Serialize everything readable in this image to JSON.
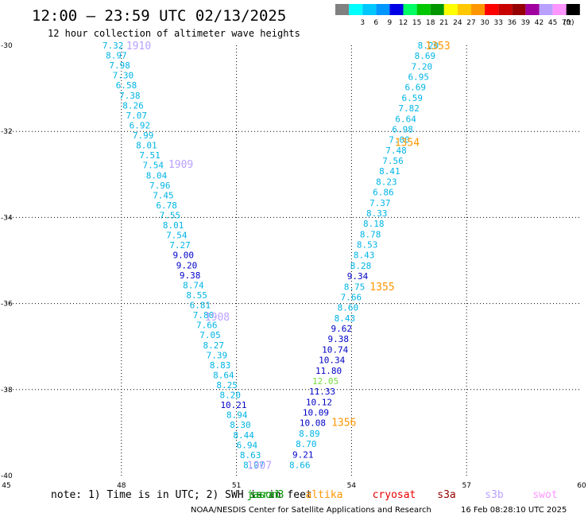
{
  "header": {
    "title": "12:00 — 23:59 UTC 02/13/2025",
    "subtitle": "12 hour collection of altimeter wave heights"
  },
  "legend": {
    "unit": "(ft)",
    "swatches": [
      {
        "color": "#808080",
        "label": ""
      },
      {
        "color": "#00ffff",
        "label": "3"
      },
      {
        "color": "#00c8ff",
        "label": "6"
      },
      {
        "color": "#0096ff",
        "label": "9"
      },
      {
        "color": "#0000e6",
        "label": "12"
      },
      {
        "color": "#00ff64",
        "label": "15"
      },
      {
        "color": "#00c800",
        "label": "18"
      },
      {
        "color": "#009600",
        "label": "21"
      },
      {
        "color": "#ffff00",
        "label": "24"
      },
      {
        "color": "#ffc800",
        "label": "27"
      },
      {
        "color": "#ff9600",
        "label": "30"
      },
      {
        "color": "#ff0000",
        "label": "33"
      },
      {
        "color": "#c80000",
        "label": "36"
      },
      {
        "color": "#960000",
        "label": "39"
      },
      {
        "color": "#a000a0",
        "label": "42"
      },
      {
        "color": "#b9a0ff",
        "label": "45"
      },
      {
        "color": "#ff96ff",
        "label": "70"
      },
      {
        "color": "#000000",
        "label": ""
      }
    ]
  },
  "footer": {
    "note": "note: 1) Time is in UTC; 2) SWH is in feet",
    "credit": "NOAA/NESDIS Center for Satellite Applications and Research",
    "timestamp": "16 Feb 08:28:10 UTC 2025",
    "satellites": [
      {
        "name": "jason3",
        "color": "#009600"
      },
      {
        "name": "saral",
        "color": "#009600"
      },
      {
        "name": "altika",
        "color": "#ff9600"
      },
      {
        "name": "cryosat",
        "color": "#e60000"
      },
      {
        "name": "s3a",
        "color": "#960000"
      },
      {
        "name": "s3b",
        "color": "#b9a0ff"
      },
      {
        "name": "swot",
        "color": "#ff96ff"
      }
    ]
  },
  "chart_data": {
    "type": "scatter",
    "title": "12:00 — 23:59 UTC 02/13/2025",
    "subtitle": "12 hour collection of altimeter wave heights",
    "xlim": [
      45,
      60
    ],
    "ylim": [
      -40,
      -30
    ],
    "x_ticks": [
      "45",
      "48",
      "51",
      "54",
      "57",
      "60"
    ],
    "y_ticks": [
      "-30",
      "-32",
      "-34",
      "-36",
      "-38",
      "-40"
    ],
    "grid": true,
    "colors": {
      "low": "#00b4e6",
      "mid": "#0000c8",
      "high": "#78dc3c"
    },
    "tracks": [
      {
        "pass_label": "1910",
        "pass_color": "#b9a0ff",
        "label_at": [
          48.45,
          -30.0
        ],
        "start": [
          47.78,
          -30.0
        ],
        "end": [
          51.45,
          -39.75
        ],
        "values": [
          7.32,
          8.97,
          7.98,
          7.3,
          6.58,
          7.38,
          8.26,
          7.07,
          6.92,
          7.99,
          8.01,
          7.51,
          7.54,
          8.04,
          7.96,
          7.45,
          6.78,
          7.55,
          8.01,
          7.54,
          7.27,
          9.0,
          9.2,
          9.38,
          8.74,
          8.55,
          6.81,
          7.8,
          7.66,
          7.05,
          8.27,
          7.39,
          8.83,
          8.64,
          8.25,
          8.2,
          10.21,
          8.94,
          8.3,
          8.44,
          6.94,
          8.63,
          8.07
        ]
      },
      {
        "pass_label": "1909",
        "pass_color": "#b9a0ff",
        "label_at": [
          49.55,
          -32.75
        ]
      },
      {
        "pass_label": "1908",
        "pass_color": "#b9a0ff",
        "label_at": [
          50.5,
          -36.3
        ]
      },
      {
        "pass_label": "1907",
        "pass_color": "#b9a0ff",
        "label_at": [
          51.6,
          -39.75
        ]
      },
      {
        "pass_label": "1353",
        "pass_color": "#ff9600",
        "label_at": [
          56.25,
          -30.0
        ],
        "start": [
          56.0,
          -30.0
        ],
        "end": [
          52.65,
          -39.75
        ],
        "values": [
          8.2,
          8.69,
          7.2,
          6.95,
          6.69,
          6.59,
          7.82,
          6.64,
          6.98,
          7.0,
          7.48,
          7.56,
          8.41,
          8.23,
          6.86,
          7.37,
          8.33,
          8.18,
          8.78,
          8.53,
          8.43,
          8.28,
          9.34,
          8.75,
          7.66,
          8.6,
          8.43,
          9.62,
          9.38,
          10.74,
          10.34,
          11.8,
          12.05,
          11.33,
          10.12,
          10.09,
          10.08,
          8.89,
          8.7,
          9.21,
          8.66
        ]
      },
      {
        "pass_label": "1354",
        "pass_color": "#ff9600",
        "label_at": [
          55.45,
          -32.25
        ]
      },
      {
        "pass_label": "1355",
        "pass_color": "#ff9600",
        "label_at": [
          54.8,
          -35.6
        ]
      },
      {
        "pass_label": "1356",
        "pass_color": "#ff9600",
        "label_at": [
          53.8,
          -38.75
        ]
      }
    ]
  }
}
